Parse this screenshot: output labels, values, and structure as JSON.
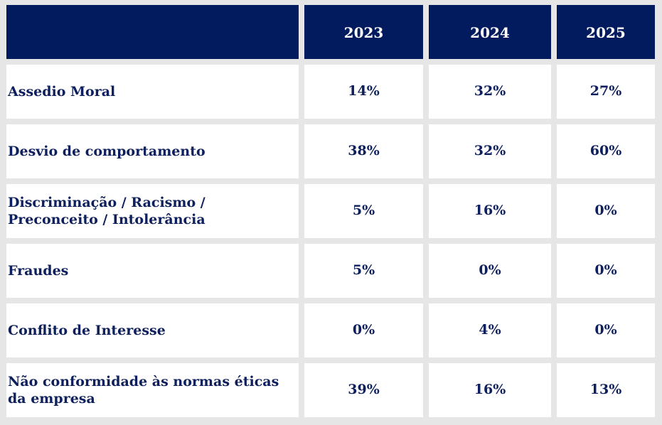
{
  "chart_data": {
    "type": "table",
    "columns": [
      "",
      "2023",
      "2024",
      "2025"
    ],
    "rows": [
      {
        "label": "Assedio Moral",
        "values": [
          "14%",
          "32%",
          "27%"
        ]
      },
      {
        "label": "Desvio de comportamento",
        "values": [
          "38%",
          "32%",
          "60%"
        ]
      },
      {
        "label": "Discriminação / Racismo / Preconceito / Intolerância",
        "values": [
          "5%",
          "16%",
          "0%"
        ]
      },
      {
        "label": "Fraudes",
        "values": [
          "5%",
          "0%",
          "0%"
        ]
      },
      {
        "label": "Conflito de Interesse",
        "values": [
          "0%",
          "4%",
          "0%"
        ]
      },
      {
        "label": "Não conformidade às normas éticas da empresa",
        "values": [
          "39%",
          "16%",
          "13%"
        ]
      }
    ]
  },
  "colors": {
    "header_bg": "#021a5e",
    "header_text": "#ffffff",
    "body_text": "#0d1f5c",
    "body_bg": "#ffffff",
    "grid": "#e6e6e6"
  }
}
